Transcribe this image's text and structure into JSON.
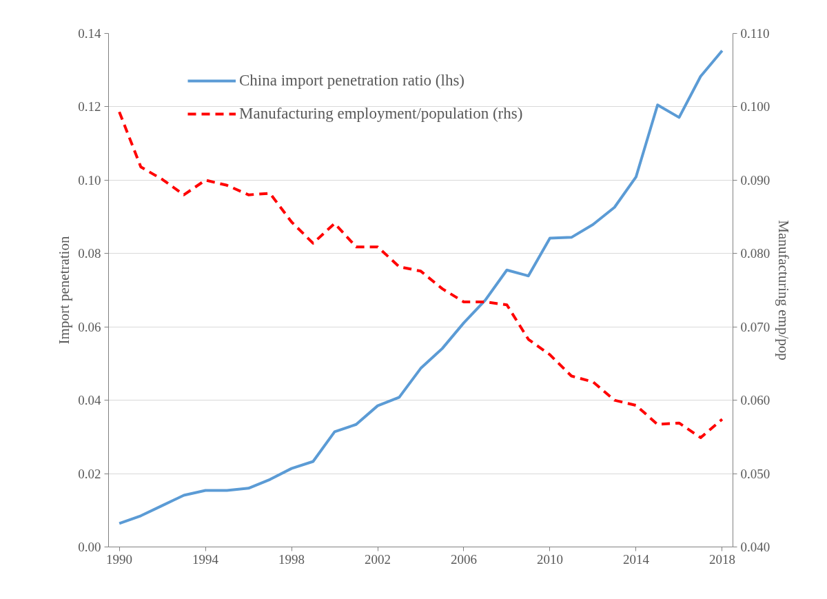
{
  "chart_data": {
    "type": "line",
    "ylabel": "Import penetration",
    "y2label": "Manufacturing emp/pop",
    "x": [
      1990,
      1991,
      1992,
      1993,
      1994,
      1995,
      1996,
      1997,
      1998,
      1999,
      2000,
      2001,
      2002,
      2003,
      2004,
      2005,
      2006,
      2007,
      2008,
      2009,
      2010,
      2011,
      2012,
      2013,
      2014,
      2015,
      2016,
      2017,
      2018
    ],
    "series": [
      {
        "name": "China import penetration ratio (lhs)",
        "color": "#5b9bd5",
        "line_style": "solid",
        "values": [
          0.0064,
          0.0085,
          0.0113,
          0.0141,
          0.0154,
          0.0154,
          0.016,
          0.0184,
          0.0214,
          0.0233,
          0.0314,
          0.0334,
          0.0385,
          0.0408,
          0.0487,
          0.0541,
          0.0611,
          0.0673,
          0.0755,
          0.0739,
          0.0842,
          0.0844,
          0.0879,
          0.0926,
          0.1009,
          0.1205,
          0.1171,
          0.1283,
          0.1353
        ]
      },
      {
        "name": "Manufacturing employment/population (rhs)",
        "color": "#ff0000",
        "line_style": "dashed",
        "axis": "y2",
        "values": [
          0.0993,
          0.0918,
          0.0901,
          0.088,
          0.09,
          0.0893,
          0.088,
          0.0882,
          0.0843,
          0.0814,
          0.0841,
          0.0809,
          0.0809,
          0.0782,
          0.0776,
          0.0752,
          0.0734,
          0.0734,
          0.073,
          0.0683,
          0.0662,
          0.0633,
          0.0625,
          0.06,
          0.0593,
          0.0567,
          0.0569,
          0.0549,
          0.0574
        ]
      }
    ],
    "xlim": [
      1989.5,
      2018.5
    ],
    "xticks": [
      1990,
      1994,
      1998,
      2002,
      2006,
      2010,
      2014,
      2018
    ],
    "ylim": [
      0,
      0.14
    ],
    "yticks": [
      {
        "value": 0,
        "label": "0.00"
      },
      {
        "value": 0.02,
        "label": "0.02"
      },
      {
        "value": 0.04,
        "label": "0.04"
      },
      {
        "value": 0.06,
        "label": "0.06"
      },
      {
        "value": 0.08,
        "label": "0.08"
      },
      {
        "value": 0.1,
        "label": "0.10"
      },
      {
        "value": 0.12,
        "label": "0.12"
      },
      {
        "value": 0.14,
        "label": "0.14"
      }
    ],
    "y2lim": [
      0.04,
      0.11
    ],
    "y2ticks": [
      {
        "value": 0.04,
        "label": "0.040"
      },
      {
        "value": 0.05,
        "label": "0.050"
      },
      {
        "value": 0.06,
        "label": "0.060"
      },
      {
        "value": 0.07,
        "label": "0.070"
      },
      {
        "value": 0.08,
        "label": "0.080"
      },
      {
        "value": 0.09,
        "label": "0.090"
      },
      {
        "value": 0.1,
        "label": "0.100"
      },
      {
        "value": 0.11,
        "label": "0.110"
      }
    ],
    "grid": "y",
    "legend": "top",
    "marker": "none"
  }
}
